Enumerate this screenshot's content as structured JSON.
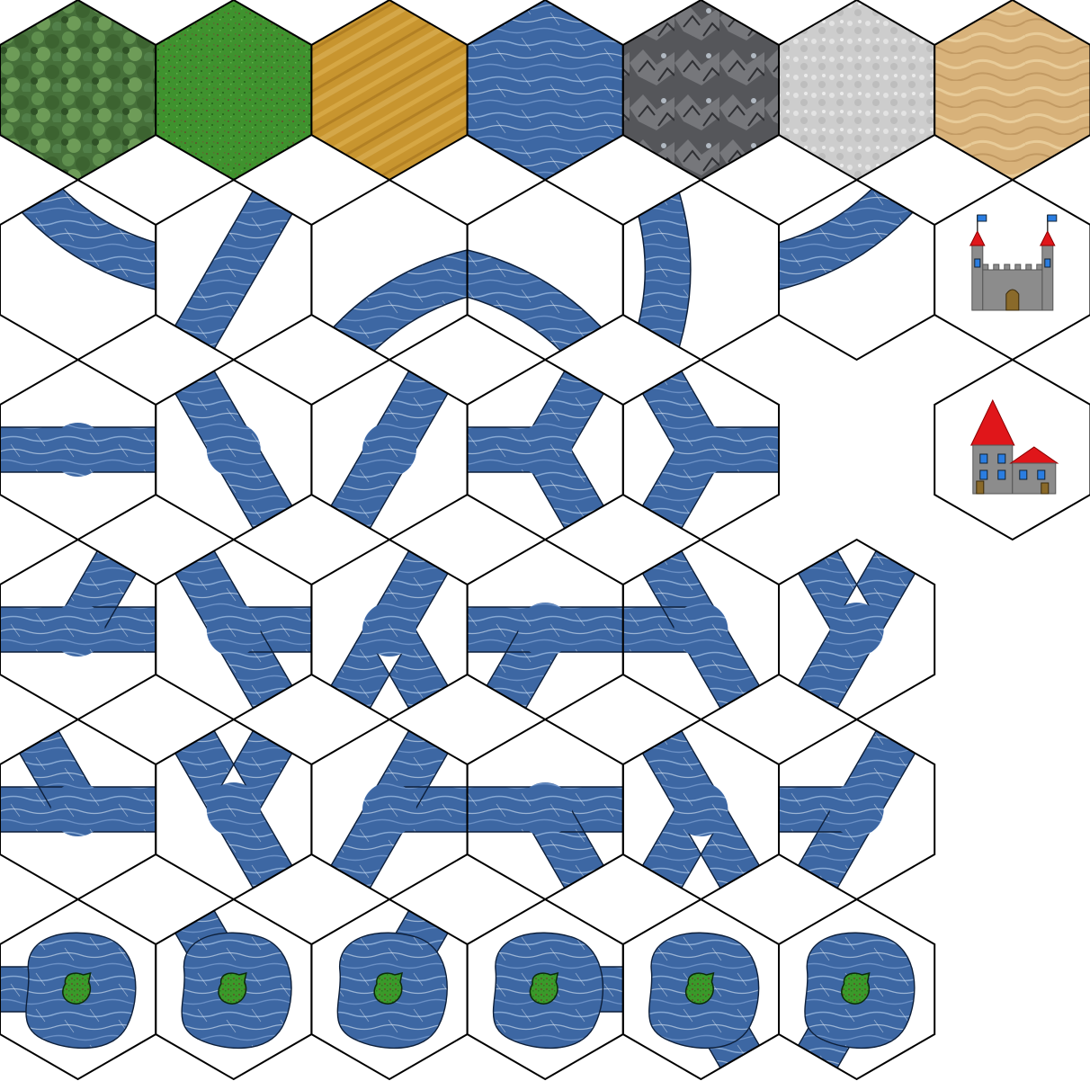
{
  "tileset": {
    "terrain_tiles": [
      {
        "id": "forest",
        "texture": "forest-texture",
        "color": "#4e7a3c"
      },
      {
        "id": "grassland",
        "texture": "grass-texture",
        "color": "#3f8f2c"
      },
      {
        "id": "plains",
        "texture": "wheat-texture",
        "color": "#c9962f"
      },
      {
        "id": "water",
        "texture": "water-texture",
        "color": "#3f6aa6"
      },
      {
        "id": "mountains",
        "texture": "rock-texture",
        "color": "#5d5d60"
      },
      {
        "id": "snow",
        "texture": "snow-texture",
        "color": "#cfcfcf"
      },
      {
        "id": "desert",
        "texture": "sand-texture",
        "color": "#d9b47a"
      }
    ],
    "river_tile_count": 29,
    "lake_tile_count": 6,
    "structure_tiles": [
      {
        "id": "castle",
        "icon": "castle-icon"
      },
      {
        "id": "town",
        "icon": "town-icon"
      }
    ],
    "colors": {
      "water": "#3b66a3",
      "water_highlight": "#c7d8ee",
      "outline": "#000000",
      "stone": "#8c8c8c",
      "roof": "#e0161a",
      "flag": "#2a7de1",
      "island": "#3a9a2a"
    }
  }
}
